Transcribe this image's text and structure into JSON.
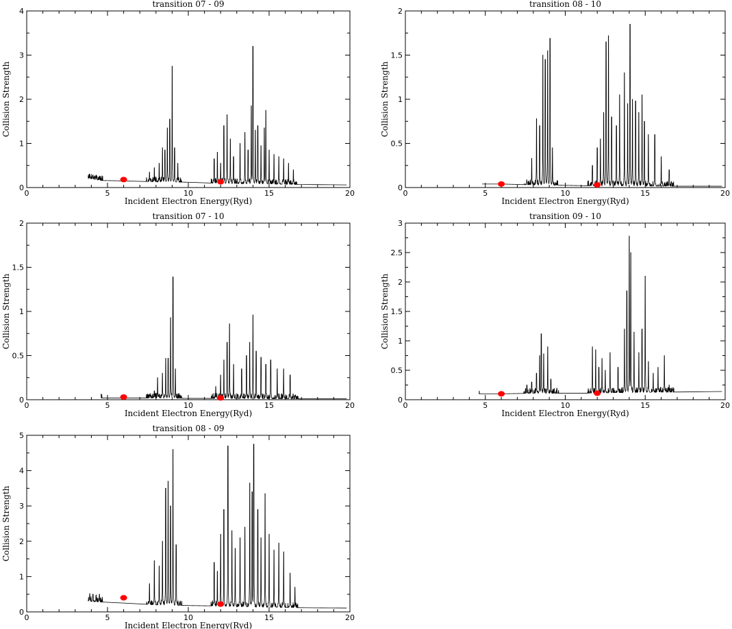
{
  "chart_data": [
    {
      "type": "line",
      "title": "transition 07 - 09",
      "xlabel": "Incident Electron Energy(Ryd)",
      "ylabel": "Collision Strength",
      "xlim": [
        0,
        20
      ],
      "ylim": [
        0,
        4
      ],
      "xticks": [
        "0",
        "5",
        "10",
        "15",
        "20"
      ],
      "yticks": [
        "0",
        "1",
        "2",
        "3",
        "4"
      ],
      "line_color": "#000000",
      "point_color": "#ff0000",
      "background": [
        [
          3.8,
          0.21
        ],
        [
          4.6,
          0.16
        ],
        [
          6.0,
          0.15
        ],
        [
          8.0,
          0.13
        ],
        [
          10.0,
          0.12
        ],
        [
          11.5,
          0.1
        ],
        [
          13.0,
          0.09
        ],
        [
          16.8,
          0.07
        ],
        [
          20.0,
          0.06
        ]
      ],
      "peaks": [
        [
          3.9,
          0.3
        ],
        [
          4.1,
          0.28
        ],
        [
          4.3,
          0.28
        ],
        [
          4.5,
          0.26
        ],
        [
          7.6,
          0.35
        ],
        [
          7.9,
          0.45
        ],
        [
          8.2,
          0.55
        ],
        [
          8.4,
          0.9
        ],
        [
          8.55,
          0.85
        ],
        [
          8.7,
          1.35
        ],
        [
          8.85,
          1.55
        ],
        [
          9.0,
          2.75
        ],
        [
          9.15,
          0.9
        ],
        [
          9.35,
          0.55
        ],
        [
          11.6,
          0.65
        ],
        [
          11.8,
          0.8
        ],
        [
          12.0,
          0.55
        ],
        [
          12.2,
          1.4
        ],
        [
          12.4,
          1.65
        ],
        [
          12.6,
          1.1
        ],
        [
          12.8,
          0.7
        ],
        [
          13.2,
          1.0
        ],
        [
          13.5,
          1.25
        ],
        [
          13.7,
          0.85
        ],
        [
          13.9,
          1.85
        ],
        [
          14.0,
          3.2
        ],
        [
          14.15,
          1.3
        ],
        [
          14.3,
          1.4
        ],
        [
          14.5,
          0.95
        ],
        [
          14.7,
          1.35
        ],
        [
          14.8,
          1.75
        ],
        [
          15.0,
          0.85
        ],
        [
          15.3,
          0.75
        ],
        [
          15.6,
          0.7
        ],
        [
          15.9,
          0.65
        ],
        [
          16.2,
          0.55
        ],
        [
          16.5,
          0.4
        ]
      ],
      "points": [
        [
          6.0,
          0.18
        ],
        [
          12.0,
          0.13
        ]
      ]
    },
    {
      "type": "line",
      "title": "transition 08 - 10",
      "xlabel": "Incident Electron Energy(Ryd)",
      "ylabel": "Collision Strength",
      "xlim": [
        0,
        20
      ],
      "ylim": [
        0,
        2
      ],
      "xticks": [
        "0",
        "5",
        "10",
        "15",
        "20"
      ],
      "yticks": [
        "0",
        "0.5",
        "1",
        "1.5",
        "2"
      ],
      "line_color": "#000000",
      "point_color": "#ff0000",
      "background": [
        [
          4.8,
          0.04
        ],
        [
          6.0,
          0.04
        ],
        [
          8.0,
          0.03
        ],
        [
          10.0,
          0.025
        ],
        [
          11.5,
          0.02
        ],
        [
          13.0,
          0.02
        ],
        [
          16.8,
          0.015
        ],
        [
          20.0,
          0.015
        ]
      ],
      "peaks": [
        [
          7.9,
          0.33
        ],
        [
          8.2,
          0.78
        ],
        [
          8.4,
          0.7
        ],
        [
          8.6,
          1.5
        ],
        [
          8.75,
          1.45
        ],
        [
          8.9,
          1.55
        ],
        [
          9.05,
          1.69
        ],
        [
          9.2,
          0.45
        ],
        [
          11.7,
          0.25
        ],
        [
          12.0,
          0.45
        ],
        [
          12.2,
          0.55
        ],
        [
          12.4,
          0.85
        ],
        [
          12.55,
          1.65
        ],
        [
          12.7,
          1.72
        ],
        [
          12.9,
          0.8
        ],
        [
          13.2,
          0.7
        ],
        [
          13.4,
          1.05
        ],
        [
          13.7,
          1.3
        ],
        [
          13.9,
          0.95
        ],
        [
          14.05,
          1.85
        ],
        [
          14.2,
          1.0
        ],
        [
          14.4,
          0.98
        ],
        [
          14.6,
          0.85
        ],
        [
          14.8,
          1.05
        ],
        [
          14.95,
          0.75
        ],
        [
          15.2,
          0.6
        ],
        [
          15.6,
          0.6
        ],
        [
          16.0,
          0.35
        ],
        [
          16.5,
          0.2
        ]
      ],
      "points": [
        [
          6.0,
          0.04
        ],
        [
          12.0,
          0.03
        ]
      ]
    },
    {
      "type": "line",
      "title": "transition 07 - 10",
      "xlabel": "Incident Electron Energy(Ryd)",
      "ylabel": "Collision Strength",
      "xlim": [
        0,
        20
      ],
      "ylim": [
        0,
        2
      ],
      "xticks": [
        "0",
        "5",
        "10",
        "15",
        "20"
      ],
      "yticks": [
        "0",
        "0.5",
        "1",
        "1.5",
        "2"
      ],
      "line_color": "#000000",
      "point_color": "#ff0000",
      "background": [
        [
          4.6,
          0.02
        ],
        [
          6.0,
          0.02
        ],
        [
          8.0,
          0.02
        ],
        [
          10.0,
          0.015
        ],
        [
          11.5,
          0.015
        ],
        [
          13.0,
          0.015
        ],
        [
          16.8,
          0.01
        ],
        [
          20.0,
          0.01
        ]
      ],
      "peaks": [
        [
          7.9,
          0.1
        ],
        [
          8.1,
          0.25
        ],
        [
          8.4,
          0.3
        ],
        [
          8.6,
          0.47
        ],
        [
          8.75,
          0.47
        ],
        [
          8.9,
          0.93
        ],
        [
          9.05,
          1.39
        ],
        [
          9.2,
          0.35
        ],
        [
          11.7,
          0.15
        ],
        [
          12.0,
          0.28
        ],
        [
          12.2,
          0.45
        ],
        [
          12.4,
          0.65
        ],
        [
          12.55,
          0.86
        ],
        [
          12.8,
          0.4
        ],
        [
          13.3,
          0.35
        ],
        [
          13.6,
          0.5
        ],
        [
          13.8,
          0.65
        ],
        [
          14.0,
          0.96
        ],
        [
          14.2,
          0.55
        ],
        [
          14.5,
          0.48
        ],
        [
          14.8,
          0.4
        ],
        [
          15.1,
          0.45
        ],
        [
          15.5,
          0.35
        ],
        [
          15.9,
          0.35
        ],
        [
          16.3,
          0.28
        ]
      ],
      "points": [
        [
          6.0,
          0.03
        ],
        [
          12.0,
          0.02
        ]
      ]
    },
    {
      "type": "line",
      "title": "transition 09 - 10",
      "xlabel": "Incident Electron Energy(Ryd)",
      "ylabel": "Collision Strength",
      "xlim": [
        0,
        20
      ],
      "ylim": [
        0,
        3
      ],
      "xticks": [
        "0",
        "5",
        "10",
        "15",
        "20"
      ],
      "yticks": [
        "0",
        "0.5",
        "1",
        "1.5",
        "2",
        "2.5",
        "3"
      ],
      "line_color": "#000000",
      "point_color": "#ff0000",
      "background": [
        [
          4.6,
          0.1
        ],
        [
          6.0,
          0.1
        ],
        [
          8.0,
          0.11
        ],
        [
          10.0,
          0.11
        ],
        [
          11.5,
          0.11
        ],
        [
          13.0,
          0.12
        ],
        [
          16.8,
          0.13
        ],
        [
          20.0,
          0.14
        ]
      ],
      "peaks": [
        [
          7.6,
          0.25
        ],
        [
          7.9,
          0.3
        ],
        [
          8.2,
          0.45
        ],
        [
          8.4,
          0.75
        ],
        [
          8.5,
          1.12
        ],
        [
          8.65,
          0.78
        ],
        [
          8.9,
          0.9
        ],
        [
          9.1,
          0.35
        ],
        [
          11.7,
          0.9
        ],
        [
          11.9,
          0.85
        ],
        [
          12.1,
          0.55
        ],
        [
          12.3,
          0.7
        ],
        [
          12.5,
          0.5
        ],
        [
          12.8,
          0.8
        ],
        [
          13.3,
          0.55
        ],
        [
          13.7,
          1.2
        ],
        [
          13.85,
          1.85
        ],
        [
          14.0,
          2.78
        ],
        [
          14.1,
          2.5
        ],
        [
          14.3,
          1.15
        ],
        [
          14.6,
          0.8
        ],
        [
          14.8,
          1.2
        ],
        [
          15.0,
          2.1
        ],
        [
          15.2,
          0.65
        ],
        [
          15.5,
          0.45
        ],
        [
          15.8,
          0.55
        ],
        [
          16.2,
          0.75
        ],
        [
          16.5,
          0.25
        ]
      ],
      "points": [
        [
          6.0,
          0.1
        ],
        [
          12.0,
          0.11
        ]
      ]
    },
    {
      "type": "line",
      "title": "transition 08 - 09",
      "xlabel": "Incident Electron Energy(Ryd)",
      "ylabel": "Collision Strength",
      "xlim": [
        0,
        20
      ],
      "ylim": [
        0,
        5
      ],
      "xticks": [
        "0",
        "5",
        "10",
        "15",
        "20"
      ],
      "yticks": [
        "0",
        "1",
        "2",
        "3",
        "4",
        "5"
      ],
      "line_color": "#000000",
      "point_color": "#ff0000",
      "background": [
        [
          3.8,
          0.3
        ],
        [
          4.6,
          0.28
        ],
        [
          6.0,
          0.25
        ],
        [
          8.0,
          0.2
        ],
        [
          10.0,
          0.18
        ],
        [
          11.5,
          0.17
        ],
        [
          13.0,
          0.15
        ],
        [
          16.8,
          0.12
        ],
        [
          20.0,
          0.11
        ]
      ],
      "peaks": [
        [
          3.9,
          0.52
        ],
        [
          4.1,
          0.5
        ],
        [
          4.3,
          0.48
        ],
        [
          4.5,
          0.5
        ],
        [
          7.6,
          0.8
        ],
        [
          7.9,
          1.45
        ],
        [
          8.2,
          1.3
        ],
        [
          8.4,
          2.0
        ],
        [
          8.6,
          3.5
        ],
        [
          8.75,
          3.7
        ],
        [
          8.9,
          3.0
        ],
        [
          9.05,
          4.6
        ],
        [
          9.25,
          1.9
        ],
        [
          11.6,
          1.4
        ],
        [
          11.8,
          1.15
        ],
        [
          12.0,
          2.2
        ],
        [
          12.2,
          2.9
        ],
        [
          12.45,
          4.7
        ],
        [
          12.7,
          2.3
        ],
        [
          12.9,
          1.8
        ],
        [
          13.2,
          2.1
        ],
        [
          13.5,
          2.4
        ],
        [
          13.8,
          3.65
        ],
        [
          13.95,
          3.4
        ],
        [
          14.05,
          4.75
        ],
        [
          14.3,
          2.9
        ],
        [
          14.5,
          2.1
        ],
        [
          14.75,
          3.35
        ],
        [
          15.0,
          2.2
        ],
        [
          15.3,
          1.75
        ],
        [
          15.6,
          1.95
        ],
        [
          15.9,
          1.7
        ],
        [
          16.3,
          1.1
        ],
        [
          16.6,
          0.7
        ]
      ],
      "points": [
        [
          6.0,
          0.4
        ],
        [
          12.0,
          0.22
        ]
      ]
    }
  ]
}
